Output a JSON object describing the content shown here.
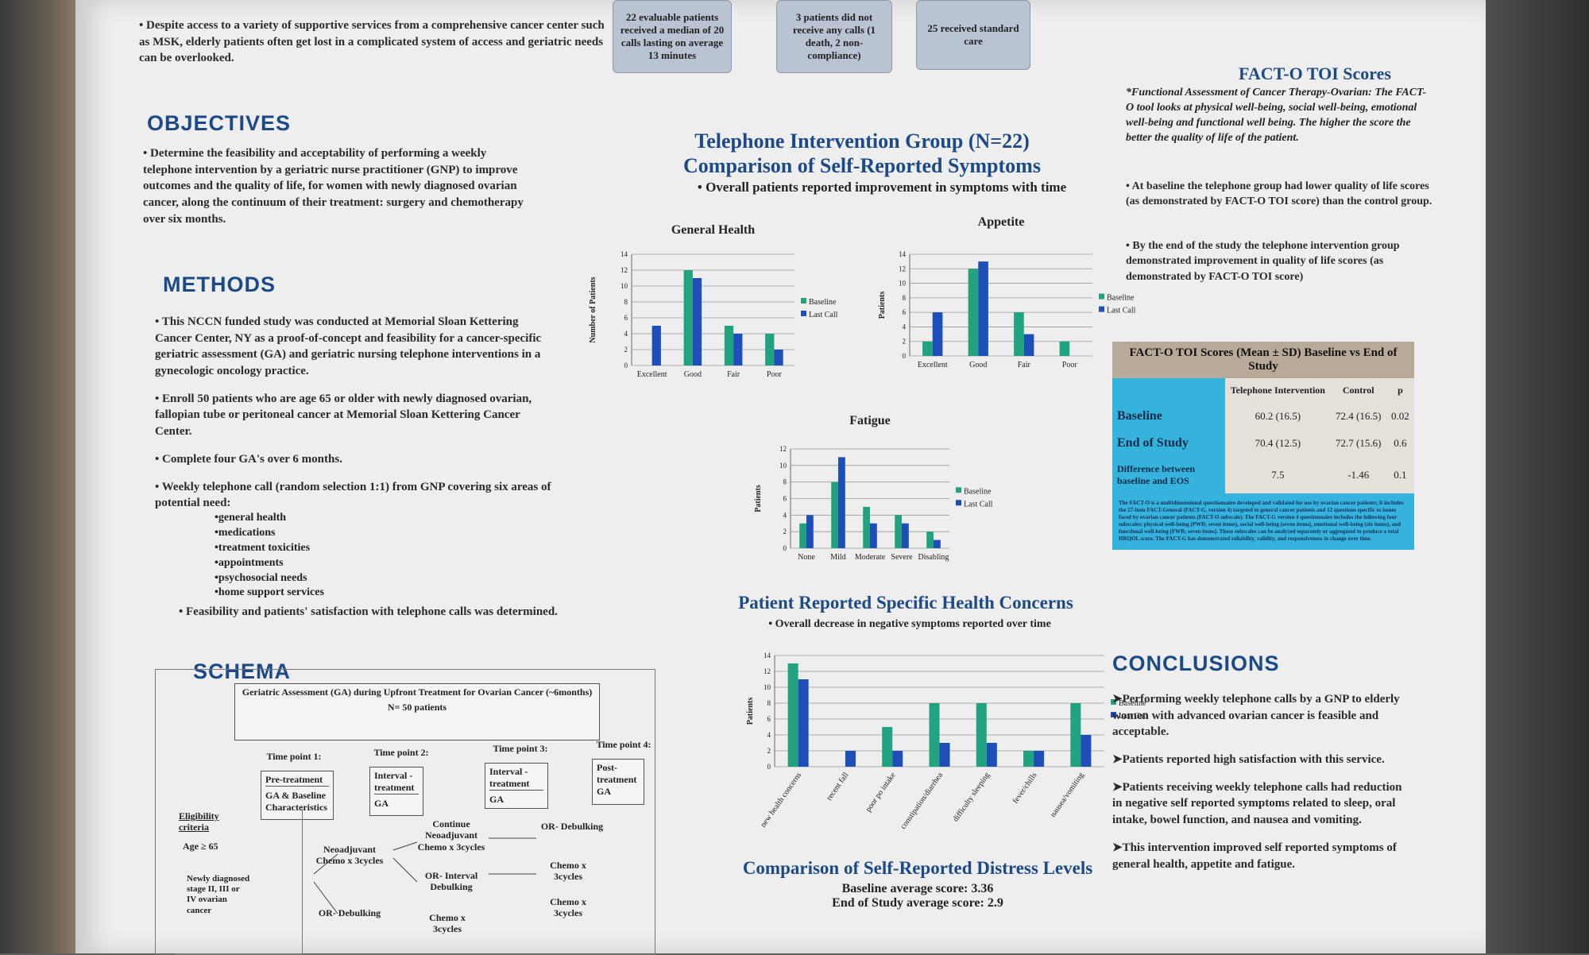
{
  "intro": {
    "text": "Despite access to a variety of supportive services from a comprehensive cancer center such as MSK, elderly patients often get lost in a complicated system of access and geriatric needs can be overlooked."
  },
  "top_boxes": [
    "22 evaluable patients received a median of 20 calls lasting on average 13 minutes",
    "3 patients did not receive any calls (1 death, 2 non-compliance)",
    "25 received standard care"
  ],
  "objectives": {
    "heading": "OBJECTIVES",
    "text": "Determine the feasibility and acceptability of performing a weekly telephone intervention by a geriatric nurse practitioner (GNP) to improve outcomes and the quality of life, for women with newly diagnosed ovarian cancer, along the continuum of their treatment: surgery and chemotherapy over six months."
  },
  "methods": {
    "heading": "METHODS",
    "bullets": [
      "This NCCN funded study was conducted at Memorial Sloan Kettering Cancer Center, NY as a proof-of-concept and feasibility for a cancer-specific geriatric assessment (GA) and geriatric nursing telephone interventions in a gynecologic oncology practice.",
      "Enroll 50 patients who are age 65 or older with newly diagnosed ovarian, fallopian tube or peritoneal cancer at Memorial Sloan Kettering Cancer Center.",
      "Complete four GA's over 6 months.",
      "Weekly telephone call (random selection 1:1) from GNP covering six areas of potential need:"
    ],
    "needs": [
      "general health",
      "medications",
      "treatment toxicities",
      "appointments",
      "psychosocial needs",
      "home support services"
    ],
    "final": "Feasibility and patients' satisfaction with telephone calls was determined."
  },
  "schema": {
    "heading": "SCHEMA",
    "title": "Geriatric Assessment (GA) during Upfront Treatment for Ovarian Cancer (~6months)",
    "n": "N= 50 patients",
    "timepoints": [
      "Time point 1:",
      "Time point 2:",
      "Time point 3:",
      "Time point 4:"
    ],
    "tp_boxes": [
      {
        "a": "Pre-treatment",
        "b": "GA & Baseline Characteristics"
      },
      {
        "a": "Interval - treatment",
        "b": "GA"
      },
      {
        "a": "Interval - treatment",
        "b": "GA"
      },
      {
        "a": "Post-treatment",
        "b": "GA"
      }
    ],
    "eligibility": "Eligibility criteria",
    "age": "Age ≥ 65",
    "newly": "Newly diagnosed stage II, III or IV ovarian cancer",
    "neoadj": "Neoadjuvant Chemo x 3cycles",
    "or_debulk": "OR- Debulking",
    "continue": "Continue Neoadjuvant Chemo x 3cycles",
    "or_interval": "OR- Interval Debulking",
    "chemo3": "Chemo x 3cycles",
    "or_debulk2": "OR- Debulking",
    "chemo3b": "Chemo x 3cycles",
    "chemo3c": "Chemo x 3cycles"
  },
  "center": {
    "title1": "Telephone Intervention Group (N=22)",
    "title2": "Comparison of Self-Reported Symptoms",
    "sub": "Overall patients reported improvement in symptoms with time",
    "concerns_title": "Patient Reported Specific Health Concerns",
    "concerns_sub": "Overall decrease in negative symptoms reported over time",
    "distress_title": "Comparison of Self-Reported Distress Levels",
    "distress_base": "Baseline average score: 3.36",
    "distress_end": "End of Study average score: 2.9"
  },
  "chart_data": [
    {
      "type": "bar",
      "title": "General Health",
      "ylabel": "Number of Patients",
      "categories": [
        "Excellent",
        "Good",
        "Fair",
        "Poor"
      ],
      "ylim": [
        0,
        14
      ],
      "yticks": [
        0,
        2,
        4,
        6,
        8,
        10,
        12,
        14
      ],
      "series": [
        {
          "name": "Baseline",
          "values": [
            0,
            12,
            5,
            4
          ]
        },
        {
          "name": "Last Call",
          "values": [
            5,
            11,
            4,
            2
          ]
        }
      ],
      "colors": [
        "#21a37f",
        "#1e4fb8"
      ],
      "legend": "right"
    },
    {
      "type": "bar",
      "title": "Appetite",
      "ylabel": "Patients",
      "categories": [
        "Excellent",
        "Good",
        "Fair",
        "Poor"
      ],
      "ylim": [
        0,
        14
      ],
      "yticks": [
        0,
        2,
        4,
        6,
        8,
        10,
        12,
        14
      ],
      "series": [
        {
          "name": "Baseline",
          "values": [
            2,
            12,
            6,
            2
          ]
        },
        {
          "name": "Last Call",
          "values": [
            6,
            13,
            3,
            0
          ]
        }
      ],
      "colors": [
        "#21a37f",
        "#1e4fb8"
      ],
      "legend": "right"
    },
    {
      "type": "bar",
      "title": "Fatigue",
      "ylabel": "Patients",
      "categories": [
        "None",
        "Mild",
        "Moderate",
        "Severe",
        "Disabling"
      ],
      "ylim": [
        0,
        12
      ],
      "yticks": [
        0,
        2,
        4,
        6,
        8,
        10,
        12
      ],
      "series": [
        {
          "name": "Baseline",
          "values": [
            3,
            8,
            5,
            4,
            2
          ]
        },
        {
          "name": "Last Call",
          "values": [
            4,
            11,
            3,
            3,
            1
          ]
        }
      ],
      "colors": [
        "#21a37f",
        "#1e4fb8"
      ],
      "legend": "right"
    },
    {
      "type": "bar",
      "title": "",
      "ylabel": "Patients",
      "categories": [
        "new health concerns",
        "recent fall",
        "poor po intake",
        "constipation/diarrhea",
        "difficulty sleeping",
        "fever/chills",
        "nausea/vomiting"
      ],
      "ylim": [
        0,
        14
      ],
      "yticks": [
        0,
        2,
        4,
        6,
        8,
        10,
        12,
        14
      ],
      "series": [
        {
          "name": "Baseline",
          "values": [
            13,
            0,
            5,
            8,
            8,
            2,
            8
          ]
        },
        {
          "name": "Last Call",
          "values": [
            11,
            2,
            2,
            3,
            3,
            2,
            4
          ]
        }
      ],
      "colors": [
        "#21a37f",
        "#1e4fb8"
      ],
      "legend": "right"
    }
  ],
  "fact": {
    "heading": "FACT-O TOI Scores",
    "desc": "*Functional Assessment of Cancer Therapy-Ovarian: The FACT-O tool looks at physical well-being, social well-being, emotional well-being and functional well being. The higher the score the better the quality of life of the patient.",
    "b1": "At baseline the telephone group had lower quality of life scores (as demonstrated by FACT-O TOI score) than the control group.",
    "b2": "By the end of the study the telephone intervention group demonstrated improvement in quality of life scores (as demonstrated by FACT-O TOI score)",
    "table_title": "FACT-O TOI Scores (Mean ± SD) Baseline vs End of Study",
    "cols": [
      "Telephone Intervention",
      "Control",
      "p"
    ],
    "rows": [
      {
        "label": "Baseline",
        "vals": [
          "60.2 (16.5)",
          "72.4 (16.5)",
          "0.02"
        ]
      },
      {
        "label": "End of Study",
        "vals": [
          "70.4 (12.5)",
          "72.7 (15.6)",
          "0.6"
        ]
      },
      {
        "label": "Difference between baseline and EOS",
        "vals": [
          "7.5",
          "-1.46",
          "0.1"
        ]
      }
    ],
    "note": "The FACT-O is a multidimensional questionnaire developed and validated for use by ovarian cancer patients; it includes the 27-item FACT-General (FACT-G, version 4) targeted to general cancer patients and 12 questions specific to issues faced by ovarian cancer patients (FACT-O subscale). The FACT-G version 4 questionnaire includes the following four subscales: physical well-being (PWB; seven items), social well-being (seven items), emotional well-being (six items), and functional well-being (FWB; seven items). These subscales can be analyzed separately or aggregated to produce a total HRQOL score. The FACT-G has demonstrated reliability, validity, and responsiveness to change over time."
  },
  "conclusions": {
    "heading": "CONCLUSIONS",
    "items": [
      "Performing weekly telephone calls by a GNP to elderly women with advanced ovarian cancer is feasible and acceptable.",
      "Patients reported high satisfaction with this service.",
      "Patients receiving weekly telephone calls had reduction in negative self reported symptoms related to sleep, oral intake, bowel function, and nausea and vomiting.",
      "This intervention improved self reported symptoms of general health, appetite and fatigue."
    ]
  }
}
